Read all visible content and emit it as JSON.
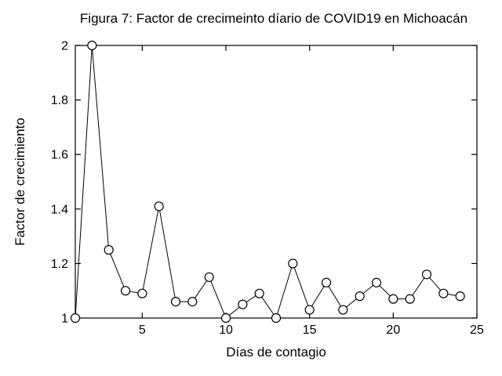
{
  "chart_data": {
    "type": "line",
    "title": "Figura 7: Factor de crecimeinto díario de COVID19 en Michoacán",
    "xlabel": "Días de contagio",
    "ylabel": "Factor de crecimiento",
    "x": [
      1,
      2,
      3,
      4,
      5,
      6,
      7,
      8,
      9,
      10,
      11,
      12,
      13,
      14,
      15,
      16,
      17,
      18,
      19,
      20,
      21,
      22,
      23,
      24
    ],
    "y": [
      1.0,
      2.0,
      1.25,
      1.1,
      1.09,
      1.41,
      1.06,
      1.06,
      1.15,
      1.0,
      1.05,
      1.09,
      1.0,
      1.2,
      1.03,
      1.13,
      1.03,
      1.08,
      1.13,
      1.07,
      1.07,
      1.16,
      1.09,
      1.08
    ],
    "xlim": [
      1,
      25
    ],
    "ylim": [
      1,
      2
    ],
    "xticks": [
      5,
      10,
      15,
      20,
      25
    ],
    "yticks": [
      1,
      1.2,
      1.4,
      1.6,
      1.8,
      2
    ],
    "xtick_labels": [
      "5",
      "10",
      "15",
      "20",
      "25"
    ],
    "ytick_labels": [
      "1",
      "1.2",
      "1.4",
      "1.6",
      "1.8",
      "2"
    ],
    "grid": false,
    "legend": "none",
    "marker": "open-circle",
    "line_color": "#000000",
    "marker_fill": "#ffffff",
    "axis_color": "#000000",
    "background": "#ffffff"
  }
}
